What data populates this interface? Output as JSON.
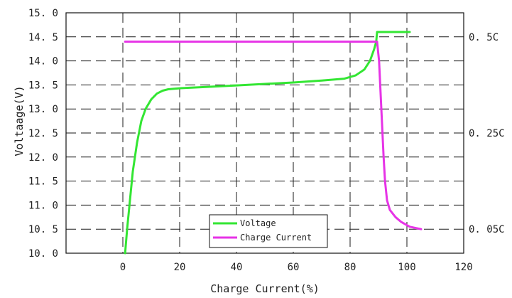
{
  "chart_data": {
    "type": "line",
    "xlabel": "Charge Current(%)",
    "ylabel": "Voltaage(V)",
    "xlim": [
      -20,
      120
    ],
    "ylim": [
      10.0,
      15.0
    ],
    "x_ticks": [
      0,
      20,
      40,
      60,
      80,
      100,
      120
    ],
    "x_tick_labels": [
      "0",
      "20",
      "40",
      "60",
      "80",
      "100",
      "120"
    ],
    "y_ticks": [
      10.0,
      10.5,
      11.0,
      11.5,
      12.0,
      12.5,
      13.0,
      13.5,
      14.0,
      14.5,
      15.0
    ],
    "y_tick_labels": [
      "10. 0",
      "10. 5",
      "11. 0",
      "11. 5",
      "12. 0",
      "12. 5",
      "13. 0",
      "13. 5",
      "14. 0",
      "14. 5",
      "15. 0"
    ],
    "right_axis": {
      "ticks": [
        {
          "label": "0. 5C",
          "y": 14.5
        },
        {
          "label": "0. 25C",
          "y": 12.5
        },
        {
          "label": "0. 05C",
          "y": 10.5
        }
      ]
    },
    "grid": true,
    "legend_position": "bottom-center",
    "series": [
      {
        "name": "Voltage",
        "color": "#33e633",
        "points": [
          [
            0.8,
            10.0
          ],
          [
            1.5,
            10.5
          ],
          [
            2.5,
            11.1
          ],
          [
            3.5,
            11.7
          ],
          [
            5,
            12.3
          ],
          [
            6.5,
            12.75
          ],
          [
            8,
            13.0
          ],
          [
            10,
            13.2
          ],
          [
            12,
            13.32
          ],
          [
            14,
            13.38
          ],
          [
            16,
            13.41
          ],
          [
            20,
            13.43
          ],
          [
            30,
            13.46
          ],
          [
            40,
            13.49
          ],
          [
            50,
            13.52
          ],
          [
            60,
            13.55
          ],
          [
            70,
            13.59
          ],
          [
            78,
            13.63
          ],
          [
            82,
            13.7
          ],
          [
            85,
            13.82
          ],
          [
            87,
            14.0
          ],
          [
            88.5,
            14.25
          ],
          [
            89.2,
            14.4
          ],
          [
            89.5,
            14.6
          ],
          [
            101,
            14.6
          ]
        ]
      },
      {
        "name": "Charge Current",
        "color": "#e633e6",
        "points": [
          [
            0.8,
            14.4
          ],
          [
            89.5,
            14.4
          ],
          [
            90.2,
            14.0
          ],
          [
            91,
            13.0
          ],
          [
            91.8,
            12.0
          ],
          [
            92.3,
            11.5
          ],
          [
            93,
            11.1
          ],
          [
            94,
            10.9
          ],
          [
            96,
            10.75
          ],
          [
            98,
            10.65
          ],
          [
            101,
            10.55
          ],
          [
            105,
            10.5
          ]
        ]
      }
    ]
  }
}
